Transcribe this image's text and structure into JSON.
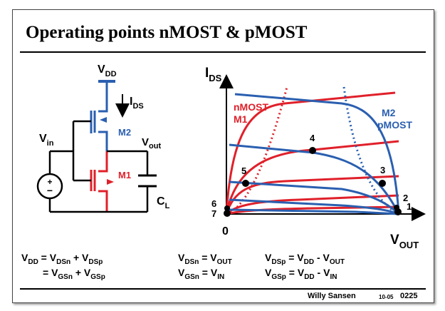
{
  "title": "Operating points nMOST & pMOST",
  "colors": {
    "nmos": "#e0202a",
    "pmos": "#2a5fb0",
    "ink": "#000000"
  },
  "circuit": {
    "vdd": "V",
    "vdd_sub": "DD",
    "ids": "I",
    "ids_sub": "DS",
    "vin": "V",
    "vin_sub": "in",
    "vout": "V",
    "vout_sub": "out",
    "m2": "M2",
    "m1": "M1",
    "cl": "C",
    "cl_sub": "L",
    "plus": "+",
    "minus": "−"
  },
  "graph": {
    "ylabel": "I",
    "ylabel_sub": "DS",
    "xlabel": "V",
    "xlabel_sub": "OUT",
    "origin": "0",
    "nmos_label_1": "nMOST",
    "nmos_label_2": "M1",
    "pmos_label_1": "M2",
    "pmos_label_2": "pMOST",
    "points": [
      {
        "label": "1"
      },
      {
        "label": "2"
      },
      {
        "label": "3"
      },
      {
        "label": "4"
      },
      {
        "label": "5"
      },
      {
        "label": "6"
      },
      {
        "label": "7"
      }
    ]
  },
  "equations": {
    "eq1": {
      "a": "V",
      "a_sub": "DD",
      "b": " = V",
      "b_sub": "DSn",
      "c": " + V",
      "c_sub": "DSp"
    },
    "eq2": {
      "b": "= V",
      "b_sub": "GSn",
      "c": " + V",
      "c_sub": "GSp"
    },
    "eq3": {
      "a": "V",
      "a_sub": "DSn",
      "b": " = V",
      "b_sub": "OUT"
    },
    "eq4": {
      "a": "V",
      "a_sub": "GSn",
      "b": " = V",
      "b_sub": "IN"
    },
    "eq5": {
      "a": "V",
      "a_sub": "DSp",
      "b": " = V",
      "b_sub": "DD",
      "c": " - V",
      "c_sub": "OUT"
    },
    "eq6": {
      "a": "V",
      "a_sub": "GSp",
      "b": " = V",
      "b_sub": "DD",
      "c": " - V",
      "c_sub": "IN"
    }
  },
  "footer": {
    "author": "Willy Sansen",
    "code": "10-05",
    "page": "0225"
  }
}
